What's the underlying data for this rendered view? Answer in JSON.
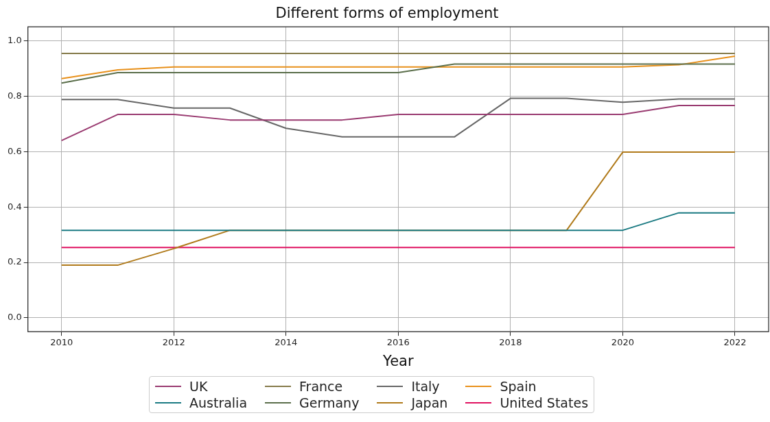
{
  "chart_data": {
    "type": "line",
    "title": "Different forms of employment",
    "xlabel": "Year",
    "x": [
      2010,
      2011,
      2012,
      2013,
      2014,
      2015,
      2016,
      2017,
      2018,
      2019,
      2020,
      2021,
      2022
    ],
    "series": [
      {
        "name": "UK",
        "color": "#993a70",
        "values": [
          0.64,
          0.734,
          0.734,
          0.714,
          0.714,
          0.714,
          0.734,
          0.734,
          0.734,
          0.734,
          0.734,
          0.766,
          0.766
        ]
      },
      {
        "name": "Australia",
        "color": "#1a7a82",
        "values": [
          0.316,
          0.316,
          0.316,
          0.316,
          0.316,
          0.316,
          0.316,
          0.316,
          0.316,
          0.316,
          0.316,
          0.379,
          0.379
        ]
      },
      {
        "name": "France",
        "color": "#857a4a",
        "values": [
          0.954,
          0.954,
          0.954,
          0.954,
          0.954,
          0.954,
          0.954,
          0.954,
          0.954,
          0.954,
          0.954,
          0.954,
          0.954
        ]
      },
      {
        "name": "Germany",
        "color": "#5a6e4a",
        "values": [
          0.847,
          0.885,
          0.885,
          0.885,
          0.885,
          0.885,
          0.885,
          0.916,
          0.916,
          0.916,
          0.916,
          0.916,
          0.916
        ]
      },
      {
        "name": "Italy",
        "color": "#666666",
        "values": [
          0.788,
          0.788,
          0.757,
          0.757,
          0.684,
          0.653,
          0.653,
          0.653,
          0.792,
          0.792,
          0.778,
          0.79,
          0.79
        ]
      },
      {
        "name": "Japan",
        "color": "#b07a1a",
        "values": [
          0.19,
          0.19,
          0.25,
          0.316,
          0.316,
          0.316,
          0.316,
          0.316,
          0.316,
          0.316,
          0.598,
          0.598,
          0.598
        ]
      },
      {
        "name": "Spain",
        "color": "#e8901a",
        "values": [
          0.863,
          0.895,
          0.905,
          0.905,
          0.905,
          0.905,
          0.905,
          0.905,
          0.905,
          0.905,
          0.905,
          0.913,
          0.944
        ]
      },
      {
        "name": "United States",
        "color": "#e0115f",
        "values": [
          0.254,
          0.254,
          0.254,
          0.254,
          0.254,
          0.254,
          0.254,
          0.254,
          0.254,
          0.254,
          0.254,
          0.254,
          0.254
        ]
      }
    ],
    "xlim": [
      2009.4,
      2022.6
    ],
    "xticks": [
      2010,
      2012,
      2014,
      2016,
      2018,
      2020,
      2022
    ],
    "ylim": [
      -0.05,
      1.05
    ],
    "yticks": [
      {
        "value": 0,
        "label": "0.0"
      },
      {
        "value": 0.2,
        "label": "0.2"
      },
      {
        "value": 0.4,
        "label": "0.4"
      },
      {
        "value": 0.6,
        "label": "0.6"
      },
      {
        "value": 0.8,
        "label": "0.8"
      },
      {
        "value": 1,
        "label": "1.0"
      }
    ],
    "grid": true,
    "legend": "bottom",
    "marker": "none",
    "line_style": "solid"
  }
}
